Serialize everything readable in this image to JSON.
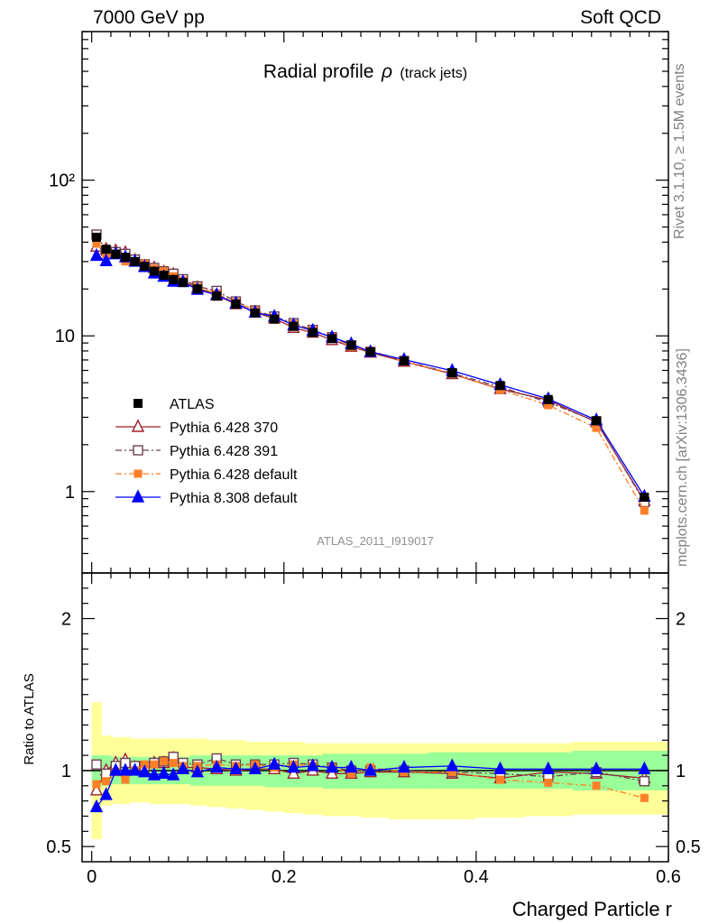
{
  "header": {
    "left": "7000 GeV pp",
    "right": "Soft QCD"
  },
  "side_labels": {
    "rivet": "Rivet 3.1.10, ≥ 1.5M events",
    "source": "mcplots.cern.ch [arXiv:1306.3436]"
  },
  "chart_data": {
    "type": "line",
    "title_main": "Radial profile",
    "title_symbol": "ρ",
    "title_suffix": "(track jets)",
    "watermark": "ATLAS_2011_I919017",
    "xlabel": "Charged Particle r",
    "ylabel_ratio": "Ratio to ATLAS",
    "xlim": [
      -0.01,
      0.6
    ],
    "ylim_main": [
      0.3,
      900
    ],
    "ylim_ratio": [
      0.4,
      2.3
    ],
    "yscale_main": "log",
    "x_ticks": [
      "0",
      "0.2",
      "0.4",
      "0.6"
    ],
    "y_ticks_main": [
      "1",
      "10",
      "10²"
    ],
    "y_ticks_ratio": [
      "0.5",
      "1",
      "2"
    ],
    "legend_position": "lower-left",
    "x": [
      0.005,
      0.015,
      0.025,
      0.035,
      0.045,
      0.055,
      0.065,
      0.075,
      0.085,
      0.095,
      0.11,
      0.13,
      0.15,
      0.17,
      0.19,
      0.21,
      0.23,
      0.25,
      0.27,
      0.29,
      0.325,
      0.375,
      0.425,
      0.475,
      0.525,
      0.575
    ],
    "data": {
      "name": "ATLAS",
      "values": [
        43,
        36,
        33.5,
        32,
        30,
        28,
        26,
        24.5,
        23,
        22,
        20,
        18,
        16,
        14,
        12.8,
        11.5,
        10.5,
        9.6,
        8.7,
        7.9,
        6.9,
        5.8,
        4.8,
        3.9,
        2.85,
        0.92
      ]
    },
    "series": [
      {
        "name": "Pythia 6.428 370",
        "color": "#a0202a",
        "marker": "triangle-open",
        "dash": "solid",
        "ratio": [
          0.87,
          1.0,
          1.05,
          1.07,
          1.02,
          1.0,
          1.05,
          1.05,
          1.08,
          1.02,
          1.02,
          1.01,
          1.0,
          1.01,
          1.01,
          0.98,
          1.0,
          0.98,
          0.98,
          0.99,
          0.99,
          0.98,
          0.95,
          0.99,
          0.98,
          0.95
        ]
      },
      {
        "name": "Pythia 6.428 391",
        "color": "#6e4050",
        "marker": "square-open",
        "dash": "dashdot",
        "ratio": [
          1.04,
          0.98,
          1.03,
          1.05,
          1.03,
          1.03,
          1.05,
          1.06,
          1.09,
          1.05,
          1.04,
          1.08,
          1.04,
          1.04,
          1.04,
          1.05,
          1.04,
          1.02,
          1.0,
          1.0,
          1.0,
          0.99,
          0.98,
          0.96,
          0.99,
          0.93
        ]
      },
      {
        "name": "Pythia 6.428 default",
        "color": "#ff7f27",
        "marker": "square-filled",
        "dash": "dashdot",
        "ratio": [
          0.91,
          0.93,
          0.99,
          0.94,
          1.0,
          1.04,
          1.04,
          1.06,
          1.05,
          1.03,
          1.03,
          1.04,
          1.03,
          1.04,
          1.02,
          1.04,
          1.03,
          1.02,
          0.98,
          1.02,
          0.99,
          0.99,
          0.94,
          0.92,
          0.9,
          0.82
        ]
      },
      {
        "name": "Pythia 8.308 default",
        "color": "#0000ff",
        "marker": "triangle-filled",
        "dash": "solid",
        "ratio": [
          0.76,
          0.84,
          1.0,
          1.0,
          1.0,
          0.99,
          0.97,
          0.98,
          0.97,
          1.01,
          0.99,
          1.02,
          1.01,
          1.01,
          1.04,
          1.02,
          1.03,
          1.02,
          1.02,
          1.0,
          1.02,
          1.03,
          1.01,
          1.01,
          1.01,
          1.01
        ]
      }
    ],
    "band_green": {
      "lo": [
        0.9,
        0.9,
        0.91,
        0.91,
        0.91,
        0.91,
        0.91,
        0.91,
        0.91,
        0.91,
        0.9,
        0.9,
        0.9,
        0.9,
        0.89,
        0.89,
        0.89,
        0.88,
        0.88,
        0.88,
        0.88,
        0.88,
        0.88,
        0.88,
        0.87,
        0.87
      ],
      "hi": [
        1.1,
        1.1,
        1.09,
        1.09,
        1.09,
        1.09,
        1.09,
        1.09,
        1.09,
        1.09,
        1.1,
        1.1,
        1.1,
        1.1,
        1.1,
        1.1,
        1.1,
        1.11,
        1.11,
        1.11,
        1.11,
        1.12,
        1.12,
        1.12,
        1.13,
        1.13
      ]
    },
    "band_yellow": {
      "lo": [
        0.55,
        0.77,
        0.78,
        0.78,
        0.79,
        0.79,
        0.78,
        0.78,
        0.78,
        0.78,
        0.77,
        0.76,
        0.75,
        0.74,
        0.73,
        0.72,
        0.71,
        0.7,
        0.7,
        0.69,
        0.68,
        0.68,
        0.69,
        0.7,
        0.71,
        0.71
      ],
      "hi": [
        1.45,
        1.23,
        1.22,
        1.22,
        1.21,
        1.21,
        1.21,
        1.21,
        1.21,
        1.21,
        1.21,
        1.2,
        1.2,
        1.19,
        1.19,
        1.19,
        1.18,
        1.18,
        1.18,
        1.18,
        1.18,
        1.18,
        1.18,
        1.18,
        1.19,
        1.19
      ]
    }
  }
}
